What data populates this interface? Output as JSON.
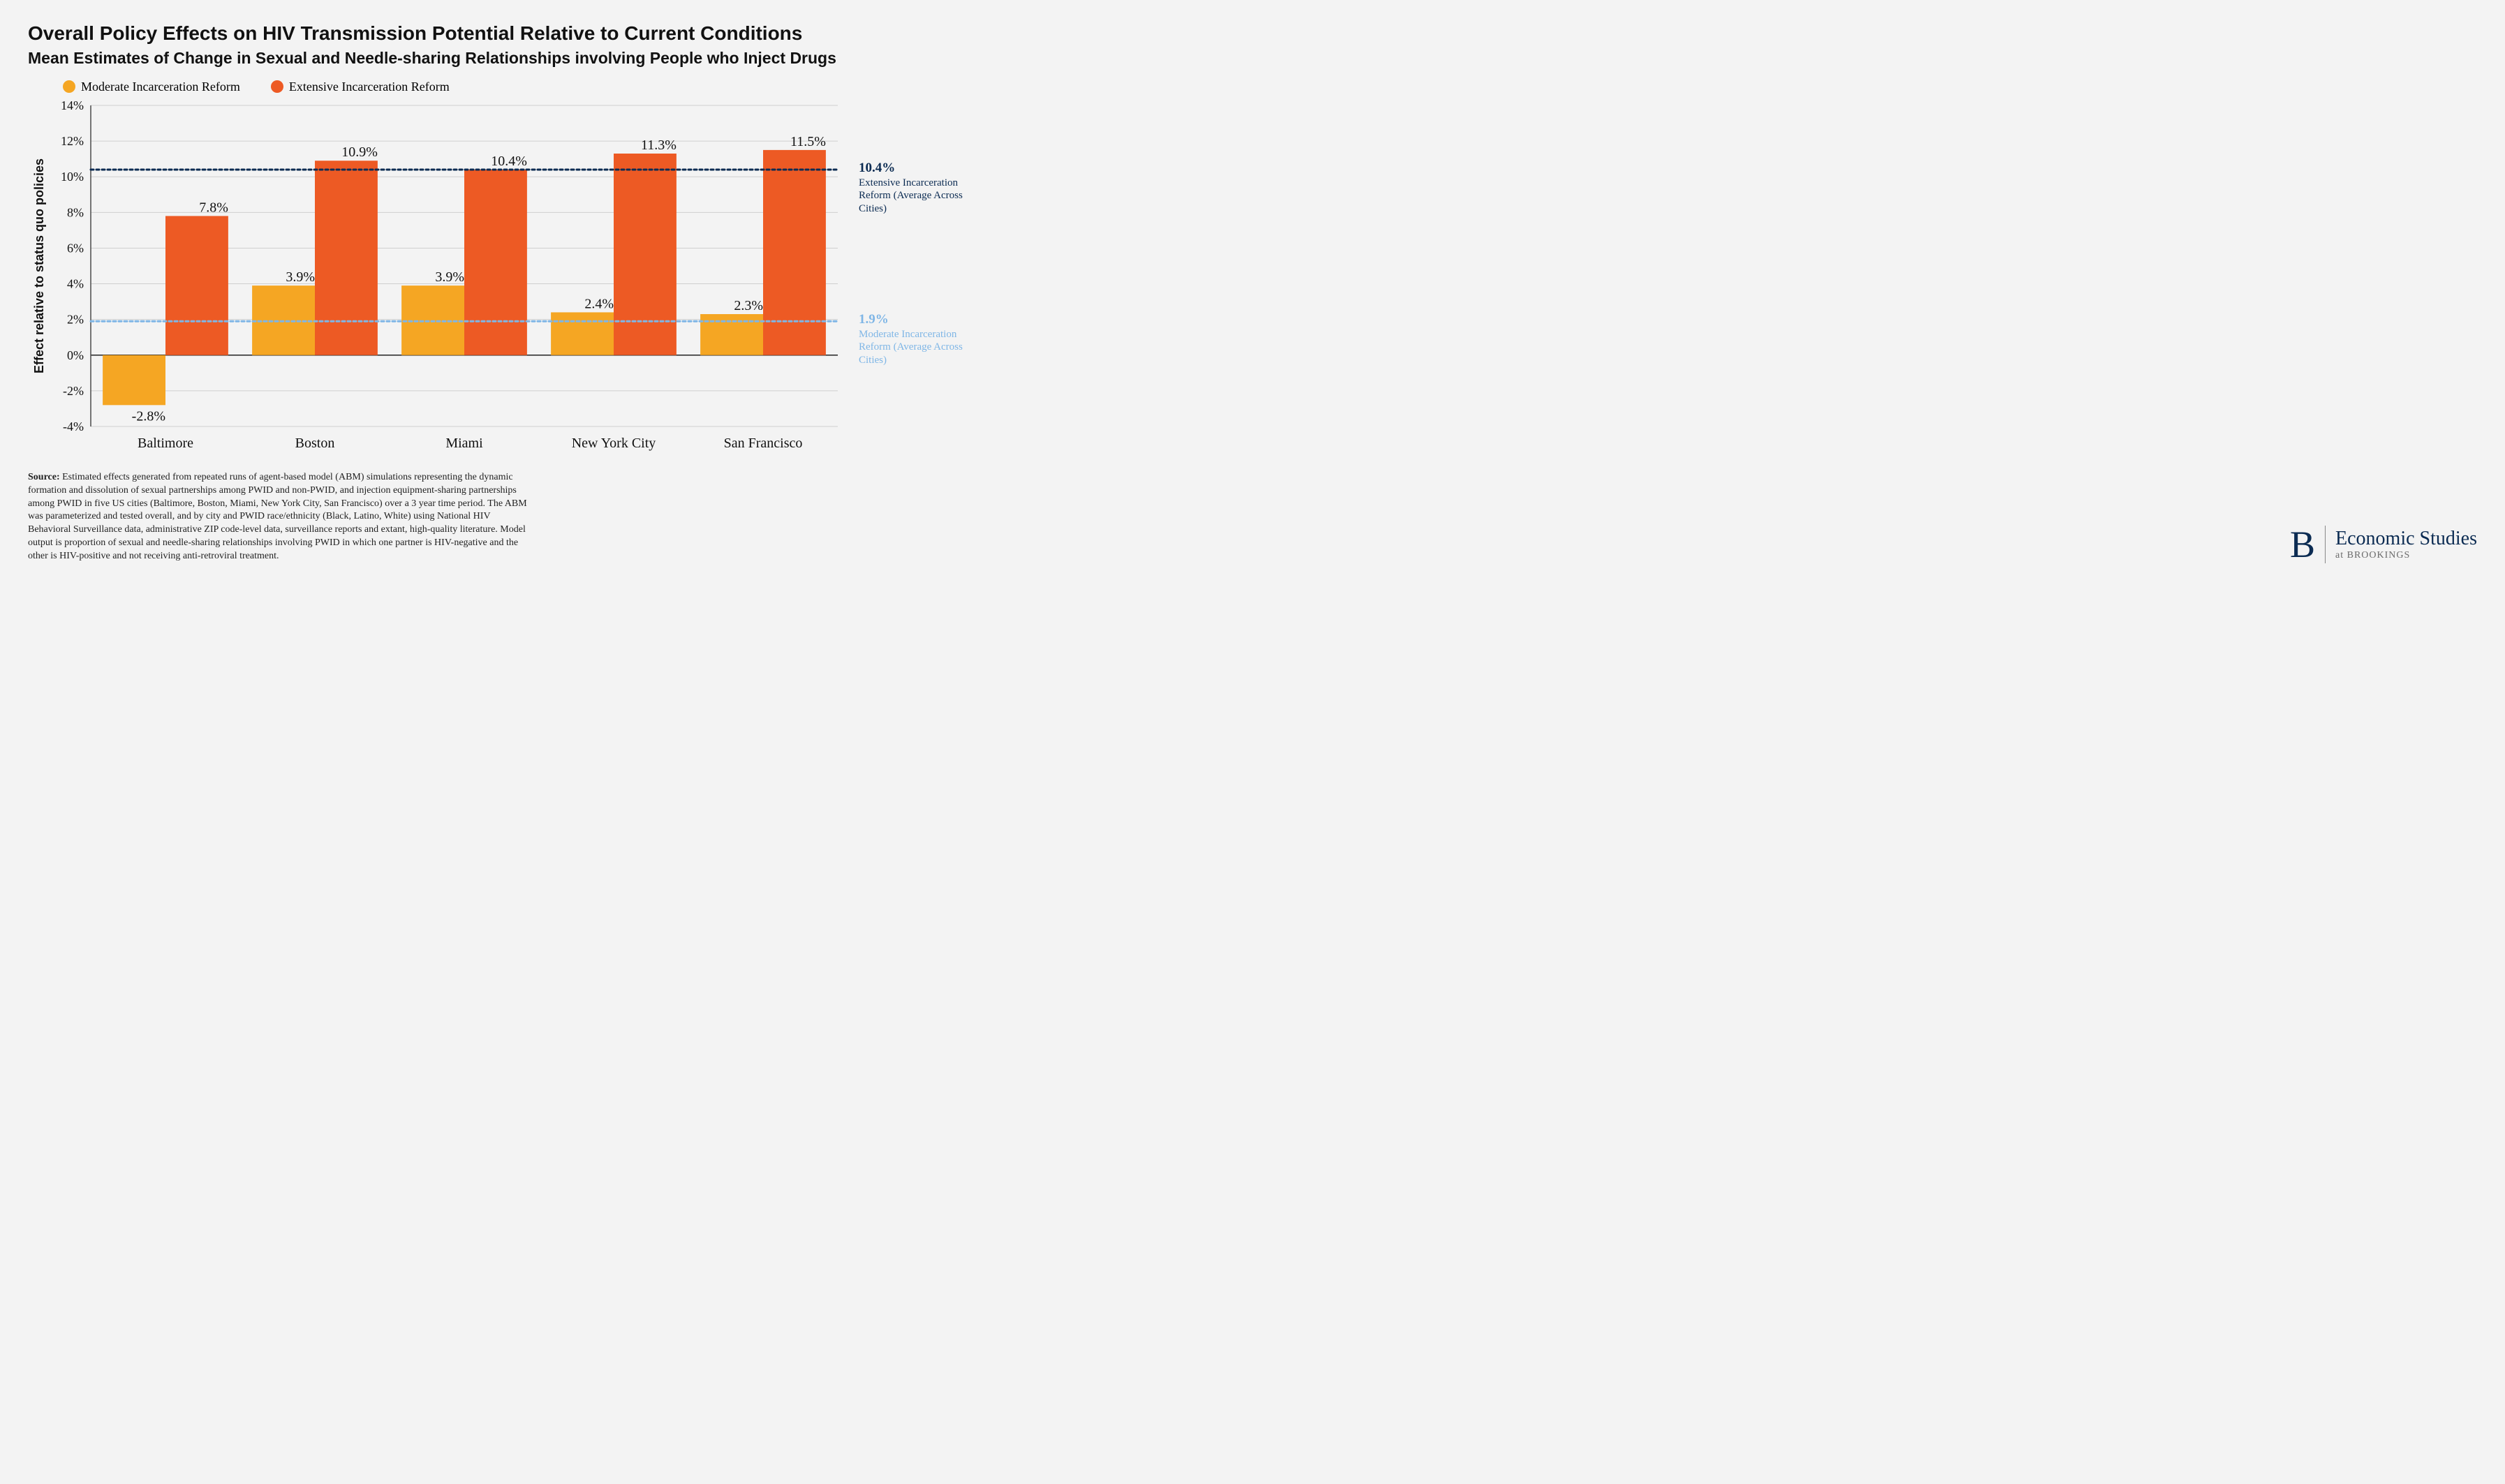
{
  "title": "Overall Policy Effects on HIV Transmission Potential Relative to Current Conditions",
  "subtitle": "Mean Estimates of Change in Sexual and Needle-sharing Relationships involving People who Inject Drugs",
  "title_fontsize": 28,
  "subtitle_fontsize": 23,
  "legend": {
    "series1": {
      "label": "Moderate Incarceration Reform",
      "color": "#f5a623"
    },
    "series2": {
      "label": "Extensive Incarceration Reform",
      "color": "#ed5a24"
    },
    "fontsize": 18
  },
  "chart": {
    "type": "grouped-bar",
    "y_axis_label": "Effect relative to status quo policies",
    "y_label_fontsize": 18,
    "ylim_min": -4,
    "ylim_max": 14,
    "ytick_step": 2,
    "ytick_suffix": "%",
    "tick_fontsize": 18,
    "cat_fontsize": 20,
    "bar_label_fontsize": 20,
    "bar_width": 0.42,
    "grid_color": "#cfcfcf",
    "axis_color": "#4a4a4a",
    "zero_line_color": "#222",
    "background": "#f3f3f3",
    "categories": [
      "Baltimore",
      "Boston",
      "Miami",
      "New York City",
      "San Francisco"
    ],
    "series1_values": [
      -2.8,
      3.9,
      3.9,
      2.4,
      2.3
    ],
    "series1_labels": [
      "-2.8%",
      "3.9%",
      "3.9%",
      "2.4%",
      "2.3%"
    ],
    "series2_values": [
      7.8,
      10.9,
      10.4,
      11.3,
      11.5
    ],
    "series2_labels": [
      "7.8%",
      "10.9%",
      "10.4%",
      "11.3%",
      "11.5%"
    ],
    "reference_lines": {
      "extensive": {
        "value": 10.4,
        "color": "#0b2b52",
        "dash": "4 4",
        "annot_value": "10.4%",
        "annot_text": "Extensive Incarceration Reform (Average Across Cities)",
        "annot_fontsize_val": 19,
        "annot_fontsize_txt": 15
      },
      "moderate": {
        "value": 1.9,
        "color": "#7fb6e6",
        "dash": "4 4",
        "annot_value": "1.9%",
        "annot_text": "Moderate Incarceration Reform (Average Across Cities)",
        "annot_fontsize_val": 19,
        "annot_fontsize_txt": 15
      }
    }
  },
  "source_label": "Source:",
  "source_text": "Estimated effects generated from repeated runs of agent-based model (ABM) simulations representing the dynamic formation and dissolution of sexual partnerships among PWID and non-PWID, and injection equipment-sharing partnerships among PWID in five US cities (Baltimore, Boston, Miami, New York City, San Francisco) over a 3 year time period. The ABM was parameterized and tested overall, and by city and PWID race/ethnicity (Black, Latino, White) using National HIV Behavioral Surveillance data, administrative ZIP code-level data, surveillance reports and extant, high-quality literature. Model output is proportion of sexual and needle-sharing relationships involving PWID in which one partner is HIV-negative and the other is HIV-positive and not receiving anti-retroviral treatment.",
  "source_fontsize": 14,
  "logo": {
    "glyph": "B",
    "glyph_fontsize": 54,
    "line1": "Economic Studies",
    "line1_fontsize": 28,
    "line2": "at BROOKINGS",
    "line2_fontsize": 14,
    "primary_color": "#0b2b52",
    "secondary_color": "#6b6b6b"
  }
}
